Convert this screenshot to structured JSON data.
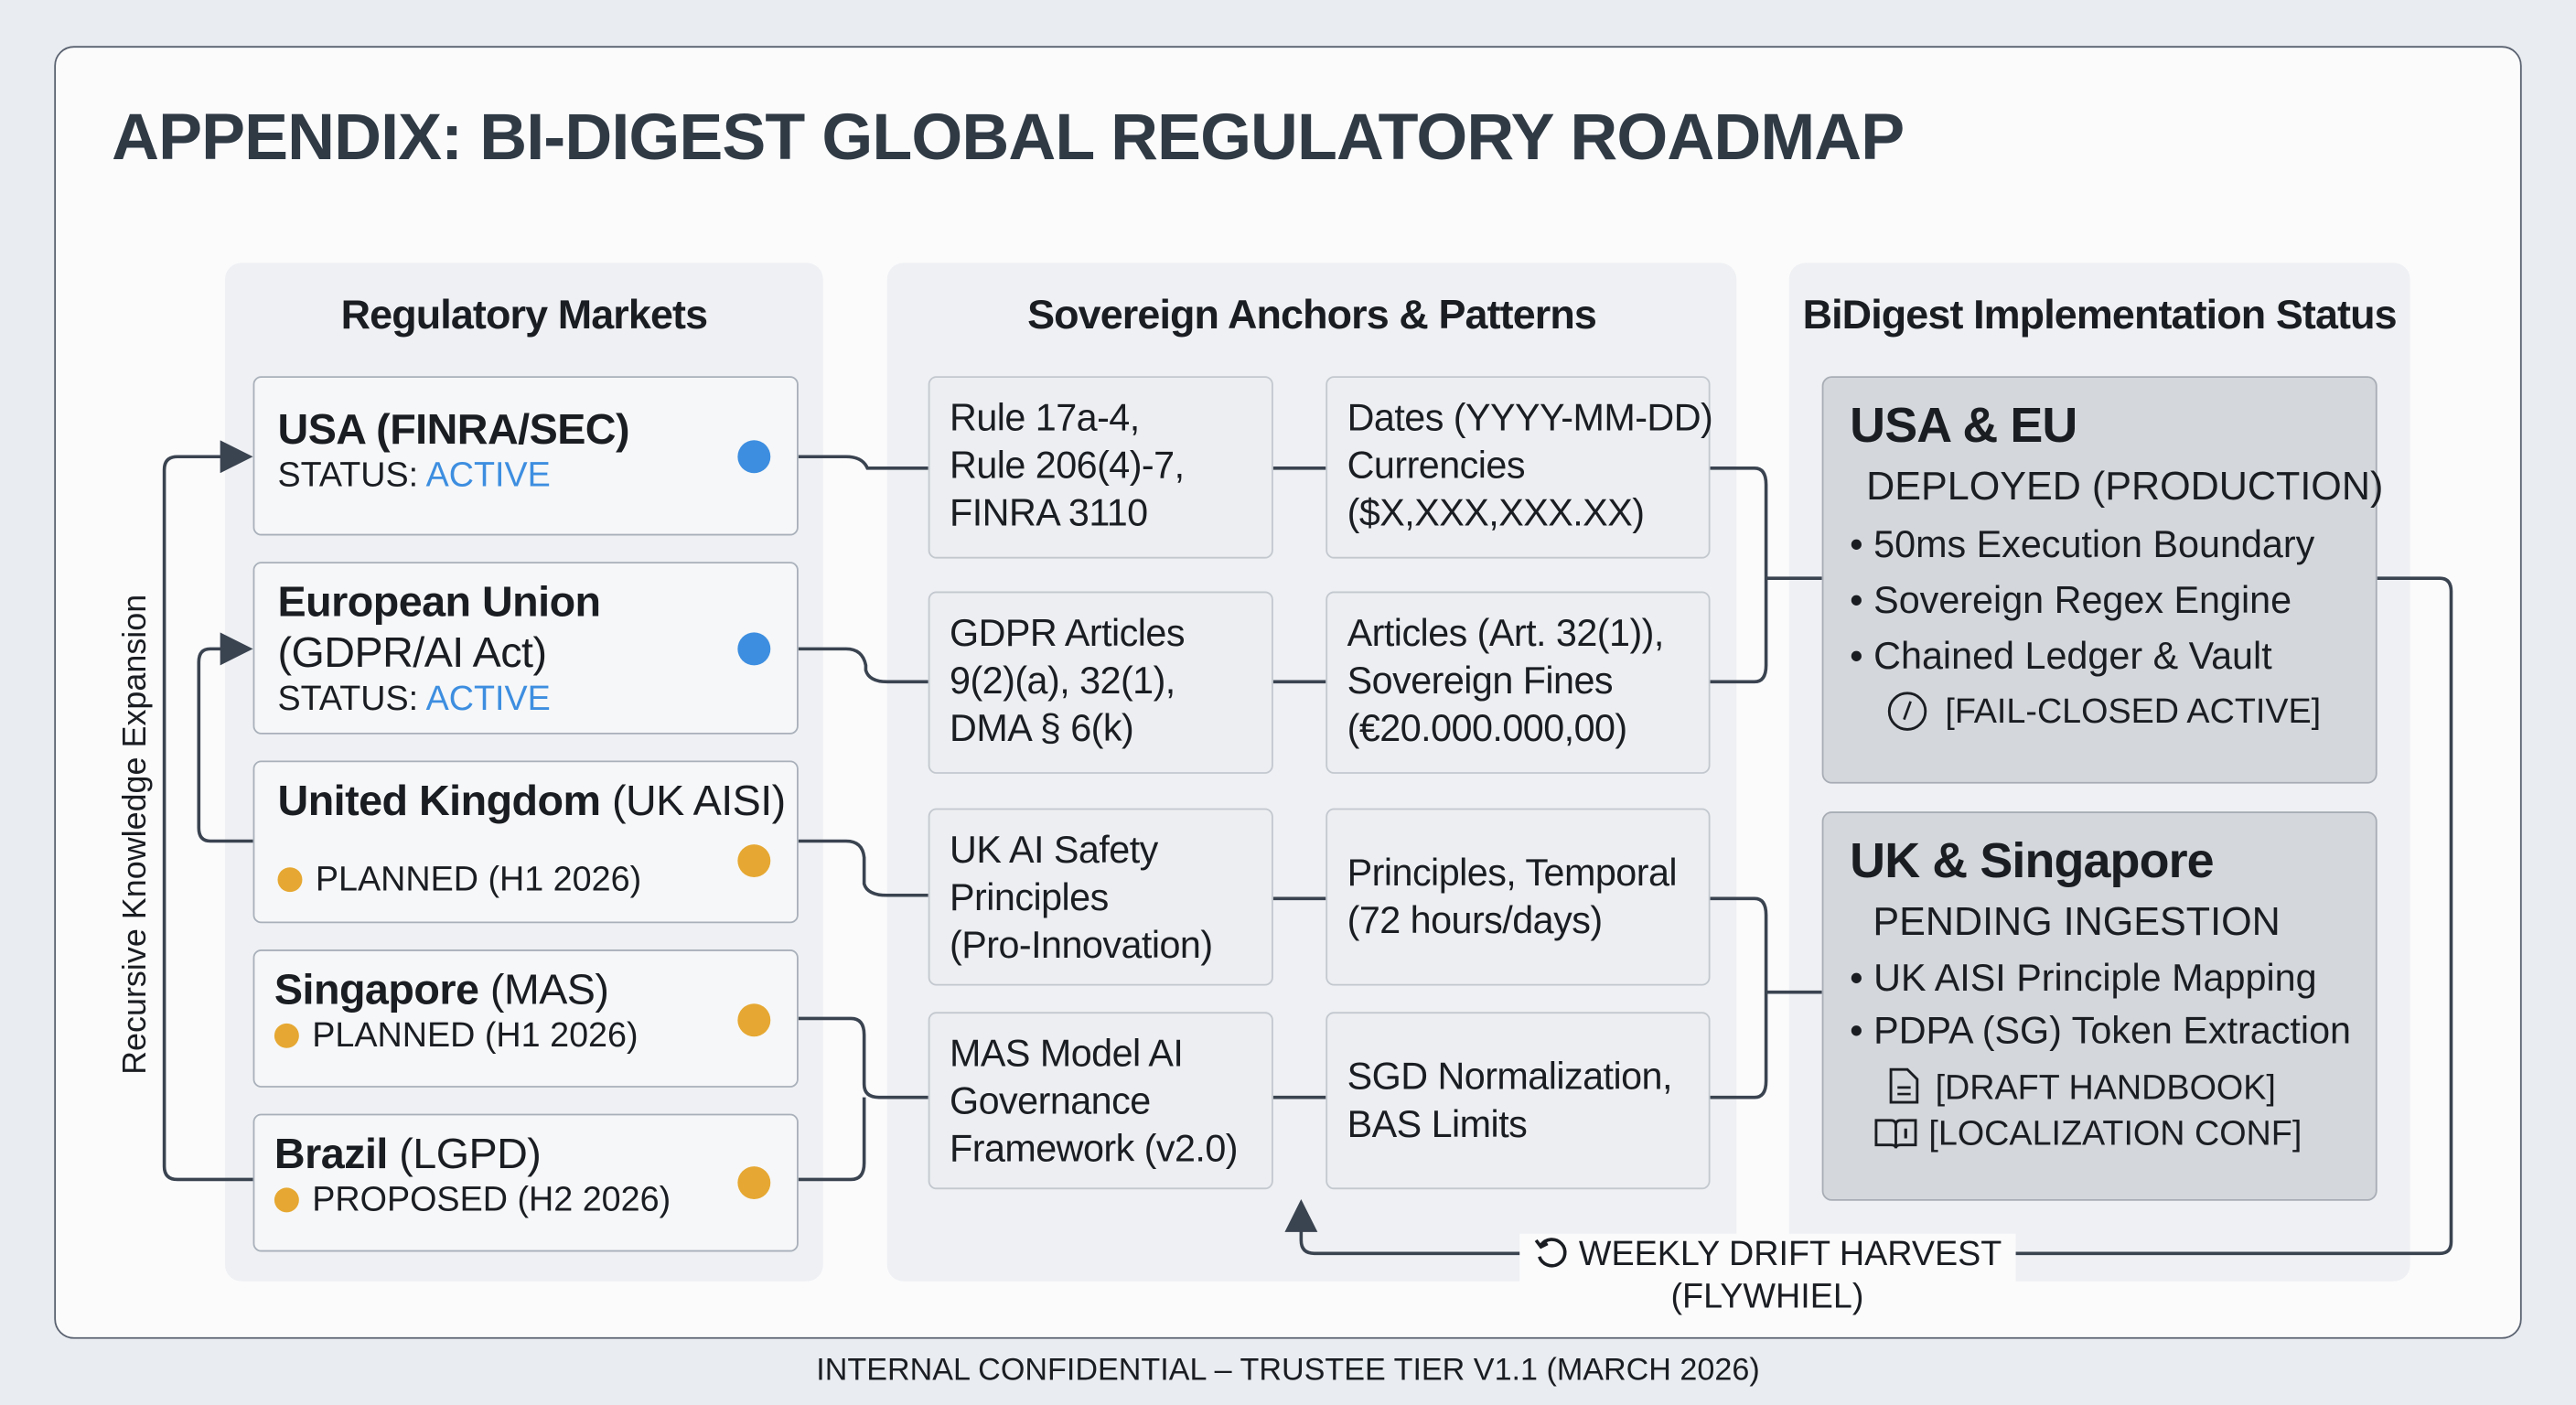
{
  "title": "APPENDIX: BI-DIGEST GLOBAL REGULATORY ROADMAP",
  "colors": {
    "active": "#3d8ee0",
    "planned": "#e6a832",
    "title": "#2f3a45"
  },
  "side_label": "Recursive Knowledge Expansion",
  "columns": {
    "markets": "Regulatory Markets",
    "anchors": "Sovereign Anchors & Patterns",
    "status": "BiDigest Implementation Status"
  },
  "markets": [
    {
      "name_bold": "USA (FINRA/SEC)",
      "name_rest": "",
      "status_label": "STATUS:",
      "status_value": "ACTIVE",
      "dot": "blue"
    },
    {
      "name_bold": "European Union",
      "name_rest": "(GDPR/AI Act)",
      "status_label": "STATUS:",
      "status_value": "ACTIVE",
      "dot": "blue"
    },
    {
      "name_bold": "United Kingdom",
      "name_rest": " (UK AISI)",
      "status_value": "PLANNED (H1 2026)",
      "dot": "amber"
    },
    {
      "name_bold": "Singapore",
      "name_rest": " (MAS)",
      "status_value": "PLANNED (H1 2026)",
      "dot": "amber"
    },
    {
      "name_bold": "Brazil",
      "name_rest": " (LGPD)",
      "status_value": "PROPOSED (H2 2026)",
      "dot": "amber"
    }
  ],
  "anchors": [
    {
      "rules": [
        "Rule 17a-4,",
        "Rule 206(4)-7,",
        "FINRA 3110"
      ],
      "patterns": [
        "Dates (YYYY-MM-DD)",
        "Currencies",
        "($X,XXX,XXX.XX)"
      ]
    },
    {
      "rules": [
        "GDPR Articles",
        "9(2)(a), 32(1),",
        "DMA § 6(k)"
      ],
      "patterns": [
        "Articles (Art. 32(1)),",
        "Sovereign Fines",
        "(€20.000.000,00)"
      ]
    },
    {
      "rules": [
        "UK AI Safety",
        "Principles",
        "(Pro-Innovation)"
      ],
      "patterns": [
        "Principles, Temporal",
        "(72 hours/days)"
      ]
    },
    {
      "rules": [
        "MAS Model AI",
        "Governance",
        "Framework (v2.0)"
      ],
      "patterns": [
        "SGD Normalization,",
        "BAS Limits"
      ]
    }
  ],
  "status": [
    {
      "heading": "USA & EU",
      "subheading": "DEPLOYED (PRODUCTION)",
      "items": [
        "50ms Execution Boundary",
        "Sovereign Regex Engine",
        "Chained Ledger & Vault"
      ],
      "tags": [
        {
          "icon": "clock-icon",
          "label": "[FAIL-CLOSED ACTIVE]"
        }
      ]
    },
    {
      "heading": "UK & Singapore",
      "subheading": "PENDING INGESTION",
      "items": [
        "UK AISI Principle Mapping",
        "PDPA (SG) Token Extraction"
      ],
      "tags": [
        {
          "icon": "document-icon",
          "label": "[DRAFT HANDBOOK]"
        },
        {
          "icon": "book-icon",
          "label": "[LOCALIZATION CONF]"
        }
      ]
    }
  ],
  "feedback": {
    "line1": "WEEKLY DRIFT HARVEST",
    "line2": "(FLYWHIEL)",
    "icon": "refresh-icon"
  },
  "footer": "INTERNAL CONFIDENTIAL – TRUSTEE TIER V1.1 (MARCH 2026)"
}
